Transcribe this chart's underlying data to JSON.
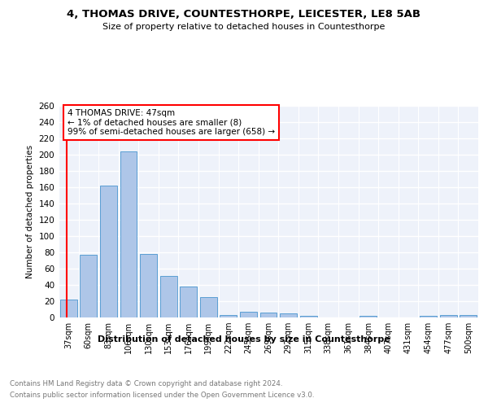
{
  "title": "4, THOMAS DRIVE, COUNTESTHORPE, LEICESTER, LE8 5AB",
  "subtitle": "Size of property relative to detached houses in Countesthorpe",
  "xlabel": "Distribution of detached houses by size in Countesthorpe",
  "ylabel": "Number of detached properties",
  "categories": [
    "37sqm",
    "60sqm",
    "83sqm",
    "106sqm",
    "130sqm",
    "153sqm",
    "176sqm",
    "199sqm",
    "222sqm",
    "245sqm",
    "269sqm",
    "292sqm",
    "315sqm",
    "338sqm",
    "361sqm",
    "384sqm",
    "407sqm",
    "431sqm",
    "454sqm",
    "477sqm",
    "500sqm"
  ],
  "values": [
    22,
    77,
    162,
    204,
    78,
    51,
    38,
    25,
    3,
    7,
    6,
    5,
    2,
    0,
    0,
    2,
    0,
    0,
    2,
    3,
    3
  ],
  "bar_color": "#aec6e8",
  "bar_edge_color": "#5a9fd4",
  "ylim": [
    0,
    260
  ],
  "yticks": [
    0,
    20,
    40,
    60,
    80,
    100,
    120,
    140,
    160,
    180,
    200,
    220,
    240,
    260
  ],
  "annotation_box_text": "4 THOMAS DRIVE: 47sqm\n← 1% of detached houses are smaller (8)\n99% of semi-detached houses are larger (658) →",
  "annotation_box_color": "#ff0000",
  "background_color": "#eef2fa",
  "grid_color": "#ffffff",
  "footer_line1": "Contains HM Land Registry data © Crown copyright and database right 2024.",
  "footer_line2": "Contains public sector information licensed under the Open Government Licence v3.0."
}
